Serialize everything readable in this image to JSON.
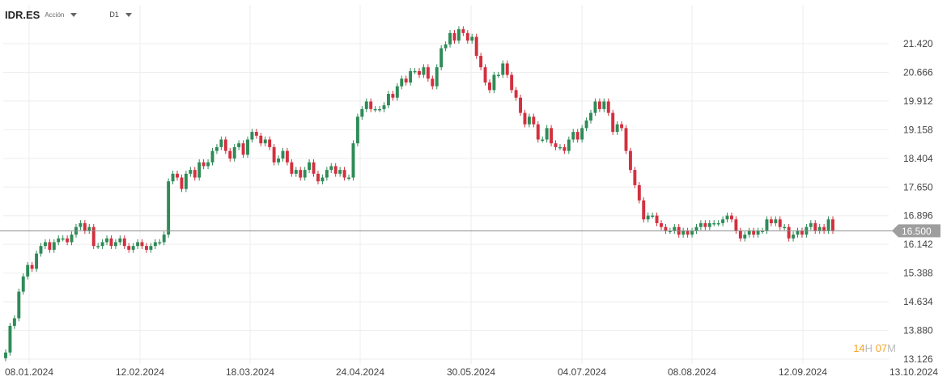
{
  "header": {
    "symbol": "IDR.ES",
    "type": "Acción",
    "timeframe": "D1"
  },
  "timer": {
    "hours": "14",
    "hours_unit": "H",
    "minutes": "07",
    "minutes_unit": "M"
  },
  "colors": {
    "up": "#2e8b57",
    "down": "#d3303f",
    "grid": "#eeeeee",
    "price_line": "#8a8a8a",
    "price_badge": "#9e9e9e"
  },
  "chart_data": {
    "type": "candlestick",
    "title": "",
    "xlabel": "",
    "ylabel": "",
    "ylim": [
      13.126,
      21.9
    ],
    "current_price": "16.500",
    "y_ticks": [
      "21.420",
      "20.666",
      "19.912",
      "19.158",
      "18.404",
      "17.650",
      "16.896",
      "16.142",
      "15.388",
      "14.634",
      "13.880",
      "13.126"
    ],
    "x_ticks": [
      "08.01.2024",
      "12.02.2024",
      "18.03.2024",
      "24.04.2024",
      "30.05.2024",
      "04.07.2024",
      "08.08.2024",
      "12.09.2024",
      "13.10.2024"
    ],
    "series": [
      {
        "closes": [
          13.3,
          14.0,
          14.2,
          14.9,
          15.3,
          15.6,
          15.5,
          15.9,
          16.1,
          16.2,
          16.0,
          16.2,
          16.3,
          16.3,
          16.2,
          16.4,
          16.6,
          16.7,
          16.5,
          16.6,
          16.1,
          16.1,
          16.2,
          16.3,
          16.1,
          16.2,
          16.3,
          16.1,
          16.0,
          16.1,
          16.2,
          16.1,
          16.0,
          16.1,
          16.2,
          16.2,
          16.4,
          17.8,
          18.0,
          17.9,
          17.6,
          18.0,
          18.1,
          17.9,
          18.3,
          18.2,
          18.3,
          18.6,
          18.7,
          18.9,
          18.6,
          18.4,
          18.7,
          18.8,
          18.5,
          18.9,
          19.1,
          19.0,
          18.8,
          18.9,
          18.7,
          18.3,
          18.4,
          18.6,
          18.3,
          18.0,
          18.1,
          17.9,
          18.1,
          18.3,
          18.0,
          17.8,
          17.9,
          18.1,
          18.2,
          18.0,
          18.1,
          17.9,
          17.9,
          18.8,
          19.5,
          19.7,
          19.9,
          19.7,
          19.7,
          19.7,
          19.8,
          20.1,
          20.0,
          20.3,
          20.5,
          20.4,
          20.7,
          20.7,
          20.6,
          20.8,
          20.5,
          20.3,
          20.8,
          21.3,
          21.4,
          21.7,
          21.5,
          21.8,
          21.7,
          21.5,
          21.6,
          21.1,
          20.8,
          20.4,
          20.2,
          20.6,
          20.6,
          20.9,
          20.6,
          20.2,
          20.0,
          19.6,
          19.3,
          19.5,
          19.3,
          18.9,
          18.9,
          19.2,
          18.8,
          18.7,
          18.7,
          18.6,
          18.9,
          19.1,
          18.9,
          19.2,
          19.4,
          19.6,
          19.9,
          19.7,
          19.9,
          19.6,
          19.1,
          19.3,
          19.2,
          18.6,
          18.1,
          17.7,
          17.3,
          16.8,
          16.9,
          16.9,
          16.7,
          16.6,
          16.5,
          16.5,
          16.6,
          16.4,
          16.5,
          16.4,
          16.5,
          16.6,
          16.7,
          16.6,
          16.7,
          16.7,
          16.7,
          16.8,
          16.9,
          16.8,
          16.5,
          16.3,
          16.4,
          16.5,
          16.4,
          16.5,
          16.5,
          16.8,
          16.7,
          16.8,
          16.6,
          16.6,
          16.3,
          16.4,
          16.5,
          16.4,
          16.6,
          16.7,
          16.5,
          16.6,
          16.5,
          16.8,
          16.5
        ]
      }
    ]
  }
}
